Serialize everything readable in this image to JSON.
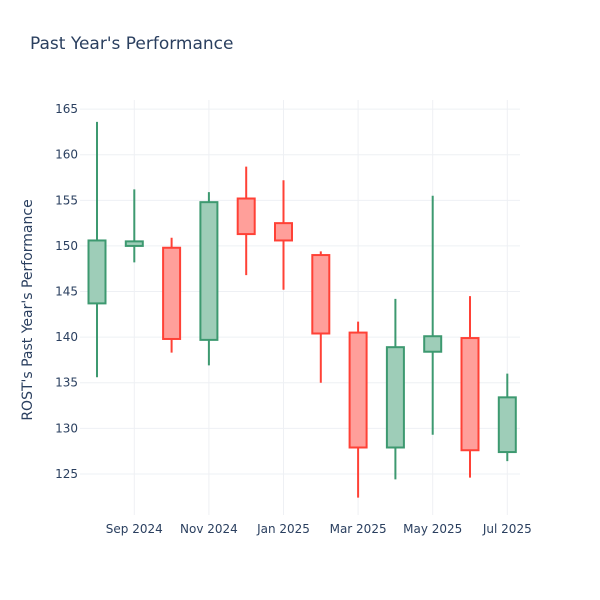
{
  "chart_data": {
    "type": "candlestick",
    "title": "Past Year's Performance",
    "xlabel": "",
    "ylabel": "ROST's Past Year's Performance",
    "ylim": [
      120.5,
      166
    ],
    "y_ticks": [
      125,
      130,
      135,
      140,
      145,
      150,
      155,
      160,
      165
    ],
    "x_ticks": [
      {
        "label": "Sep 2024",
        "month": 1
      },
      {
        "label": "Nov 2024",
        "month": 3
      },
      {
        "label": "Jan 2025",
        "month": 5
      },
      {
        "label": "Mar 2025",
        "month": 7
      },
      {
        "label": "May 2025",
        "month": 9
      },
      {
        "label": "Jul 2025",
        "month": 11
      }
    ],
    "grid": true,
    "increasing_color": "#3d9970",
    "increasing_fill": "#9ecdb8",
    "decreasing_color": "#ff4136",
    "decreasing_fill": "#ff9f9a",
    "candles": [
      {
        "month": 0,
        "date": "2024-08",
        "open": 143.7,
        "high": 163.6,
        "low": 135.6,
        "close": 150.6
      },
      {
        "month": 1,
        "date": "2024-09",
        "open": 150.0,
        "high": 156.2,
        "low": 148.2,
        "close": 150.5
      },
      {
        "month": 2,
        "date": "2024-10",
        "open": 149.8,
        "high": 150.9,
        "low": 138.3,
        "close": 139.8
      },
      {
        "month": 3,
        "date": "2024-11",
        "open": 139.7,
        "high": 155.9,
        "low": 136.9,
        "close": 154.8
      },
      {
        "month": 4,
        "date": "2024-12",
        "open": 155.2,
        "high": 158.7,
        "low": 146.8,
        "close": 151.3
      },
      {
        "month": 5,
        "date": "2025-01",
        "open": 152.5,
        "high": 157.2,
        "low": 145.2,
        "close": 150.6
      },
      {
        "month": 6,
        "date": "2025-02",
        "open": 149.0,
        "high": 149.4,
        "low": 135.0,
        "close": 140.4
      },
      {
        "month": 7,
        "date": "2025-03",
        "open": 140.5,
        "high": 141.7,
        "low": 122.4,
        "close": 127.9
      },
      {
        "month": 8,
        "date": "2025-04",
        "open": 127.9,
        "high": 144.2,
        "low": 124.4,
        "close": 138.9
      },
      {
        "month": 9,
        "date": "2025-05",
        "open": 138.4,
        "high": 155.5,
        "low": 129.3,
        "close": 140.1
      },
      {
        "month": 10,
        "date": "2025-06",
        "open": 139.9,
        "high": 144.5,
        "low": 124.6,
        "close": 127.6
      },
      {
        "month": 11,
        "date": "2025-07",
        "open": 127.4,
        "high": 136.0,
        "low": 126.4,
        "close": 133.4
      }
    ]
  }
}
